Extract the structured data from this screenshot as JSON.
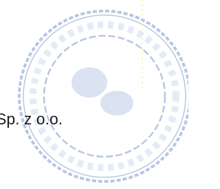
{
  "text": "Sp. z o.o."
}
